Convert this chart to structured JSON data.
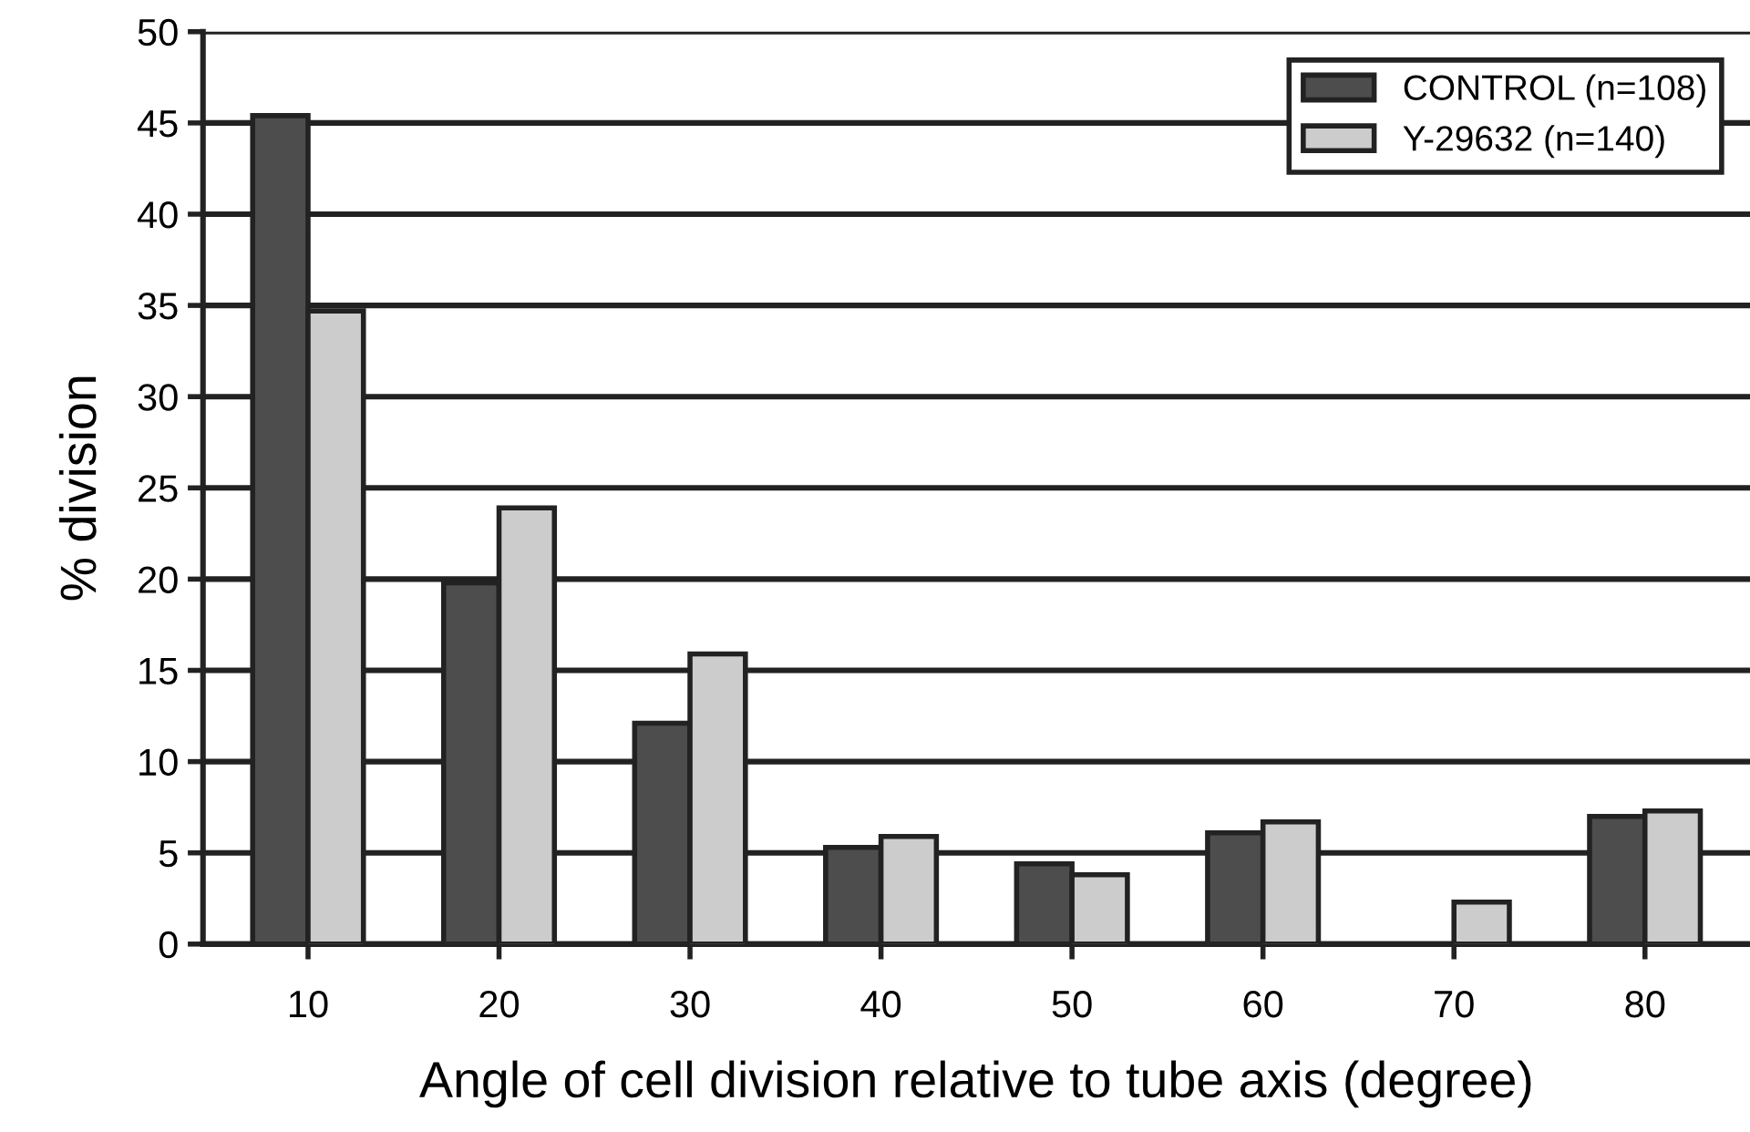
{
  "chart_data": {
    "type": "bar",
    "xlabel": "Angle of cell division relative to tube axis (degree)",
    "ylabel": "% division",
    "categories": [
      "10",
      "20",
      "30",
      "40",
      "50",
      "60",
      "70",
      "80"
    ],
    "series": [
      {
        "name": "CONTROL (n=108)",
        "color": "#4d4d4d",
        "values": [
          45.4,
          19.8,
          12.1,
          5.3,
          4.4,
          6.1,
          null,
          7.0
        ]
      },
      {
        "name": "Y-29632 (n=140)",
        "color": "#cccccc",
        "values": [
          34.7,
          23.9,
          15.9,
          5.9,
          3.8,
          6.7,
          2.3,
          7.3
        ]
      }
    ],
    "ylim": [
      0,
      50
    ],
    "yticks": [
      0,
      5,
      10,
      15,
      20,
      25,
      30,
      35,
      40,
      45,
      50
    ],
    "grid": "y",
    "legend": "top right"
  }
}
